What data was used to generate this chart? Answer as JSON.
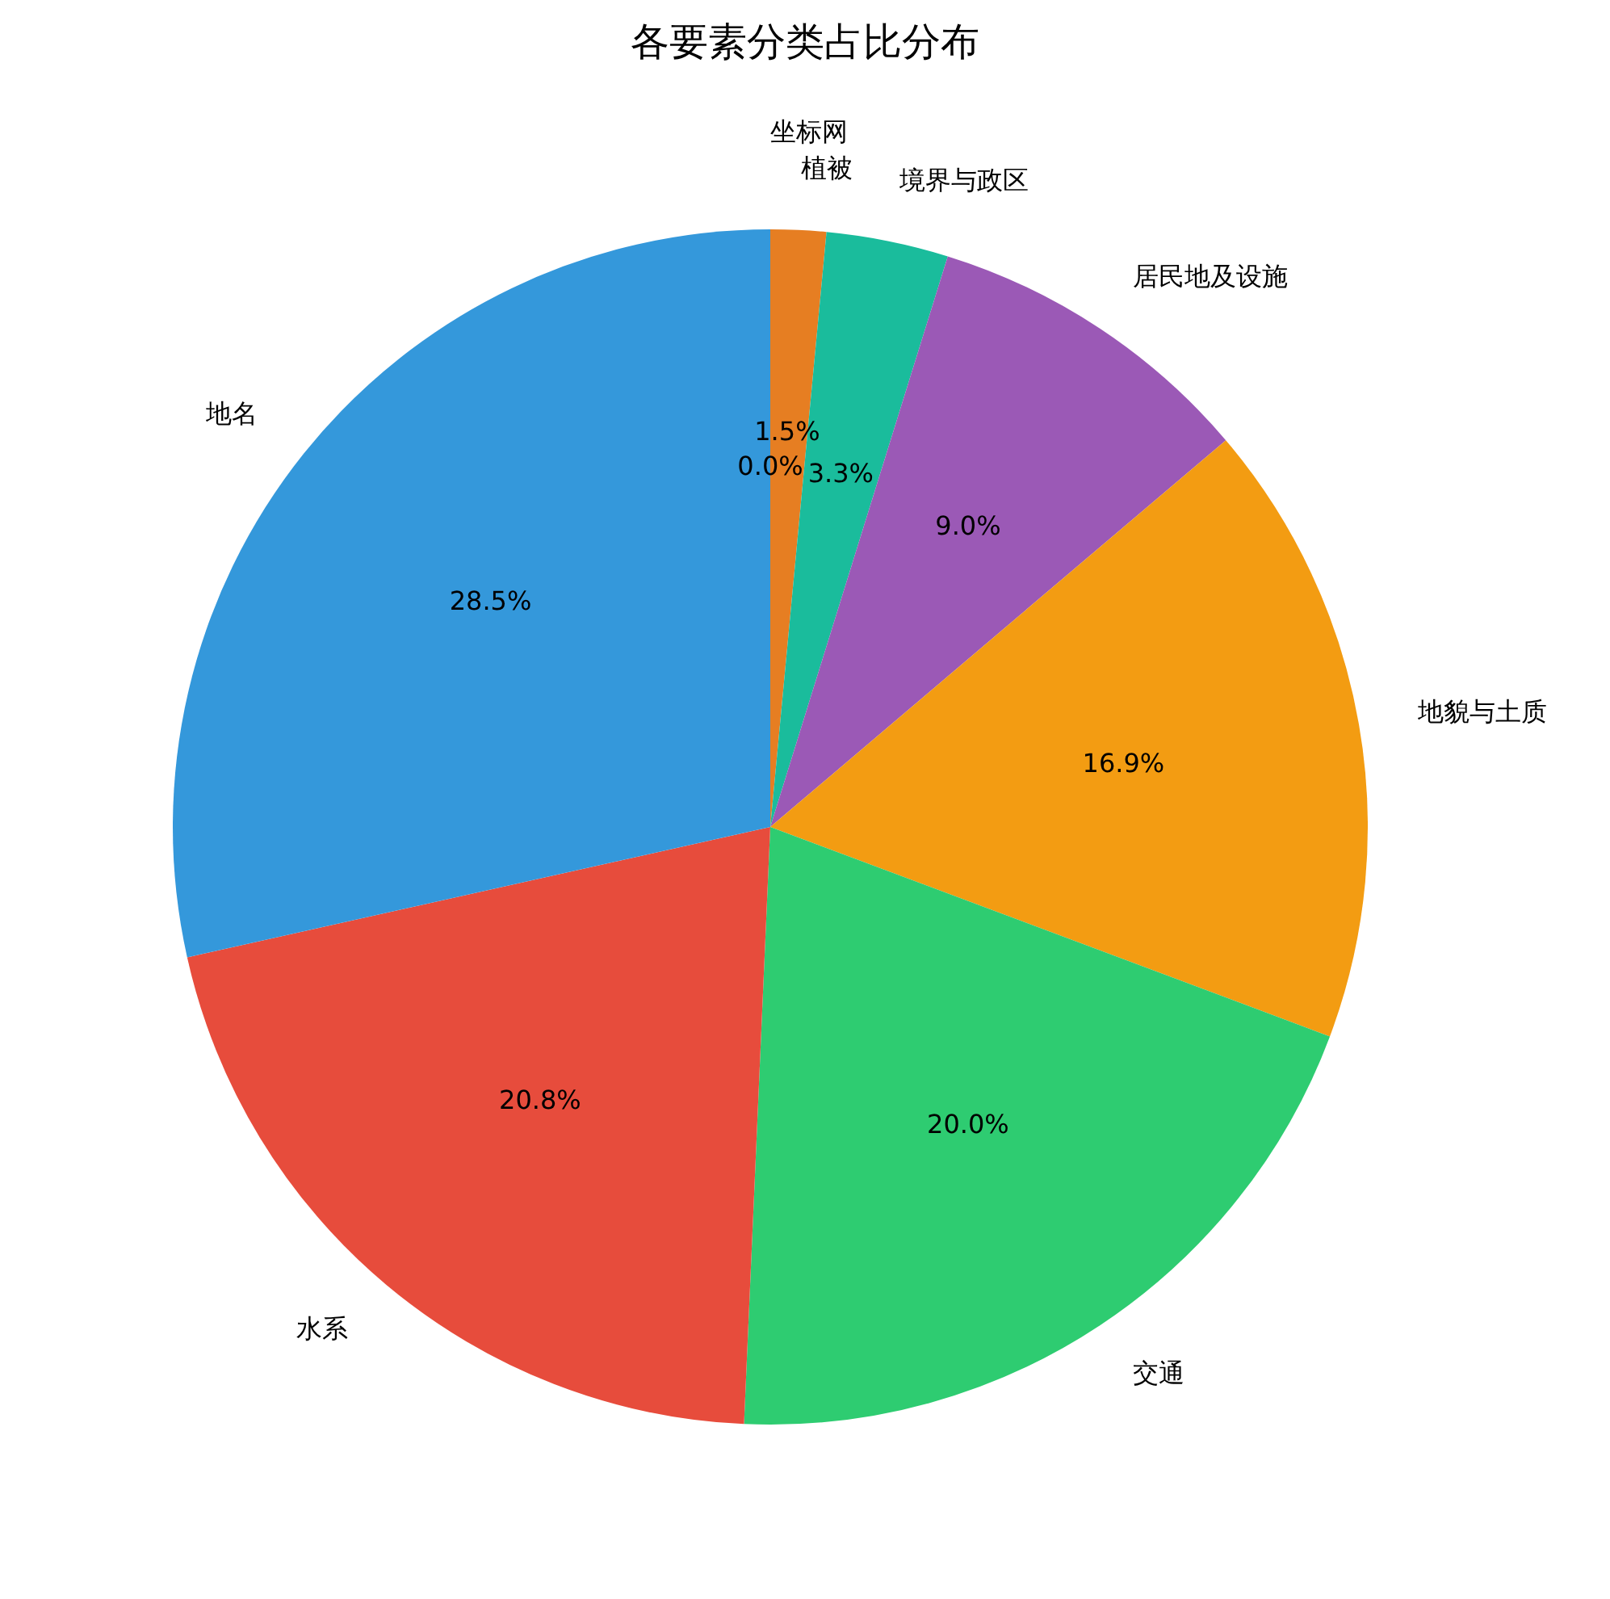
{
  "chart_data": {
    "type": "pie",
    "title": "各要素分类占比分布",
    "categories": [
      "坐标网",
      "植被",
      "境界与政区",
      "居民地及设施",
      "地貌与土质",
      "交通",
      "水系",
      "地名"
    ],
    "values": [
      0.0,
      1.5,
      3.3,
      9.0,
      16.9,
      20.0,
      20.8,
      28.5
    ],
    "value_labels": [
      "0.0%",
      "1.5%",
      "3.3%",
      "9.0%",
      "16.9%",
      "20.0%",
      "20.8%",
      "28.5%"
    ],
    "colors": [
      "#34495e",
      "#e67e22",
      "#1abc9c",
      "#9b59b6",
      "#f39c12",
      "#2ecc71",
      "#e74c3c",
      "#3498db"
    ],
    "legend": false
  }
}
